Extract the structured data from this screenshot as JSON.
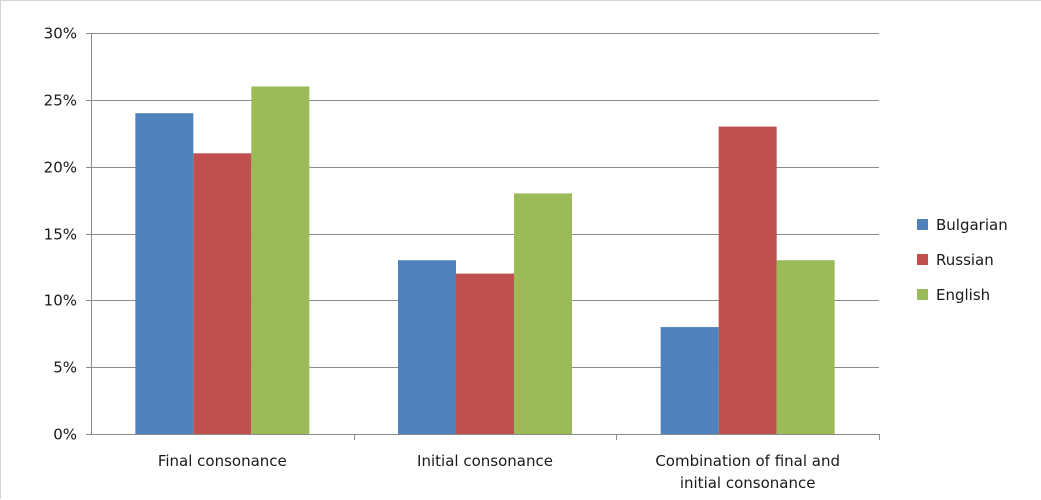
{
  "chart_data": {
    "type": "bar",
    "title": "",
    "xlabel": "",
    "ylabel": "",
    "categories": [
      [
        "Final consonance"
      ],
      [
        "Initial consonance"
      ],
      [
        "Combination of final and",
        "initial consonance"
      ]
    ],
    "series": [
      {
        "name": "Bulgarian",
        "color": "#4f81bd",
        "values": [
          24,
          13,
          8
        ]
      },
      {
        "name": "Russian",
        "color": "#c0504d",
        "values": [
          21,
          12,
          23
        ]
      },
      {
        "name": "English",
        "color": "#9bbb59",
        "values": [
          26,
          18,
          13
        ]
      }
    ],
    "ylim": [
      0,
      30
    ],
    "yticks": [
      0,
      5,
      10,
      15,
      20,
      25,
      30
    ],
    "ytick_format": "percent",
    "grid": true,
    "legend_position": "right"
  }
}
